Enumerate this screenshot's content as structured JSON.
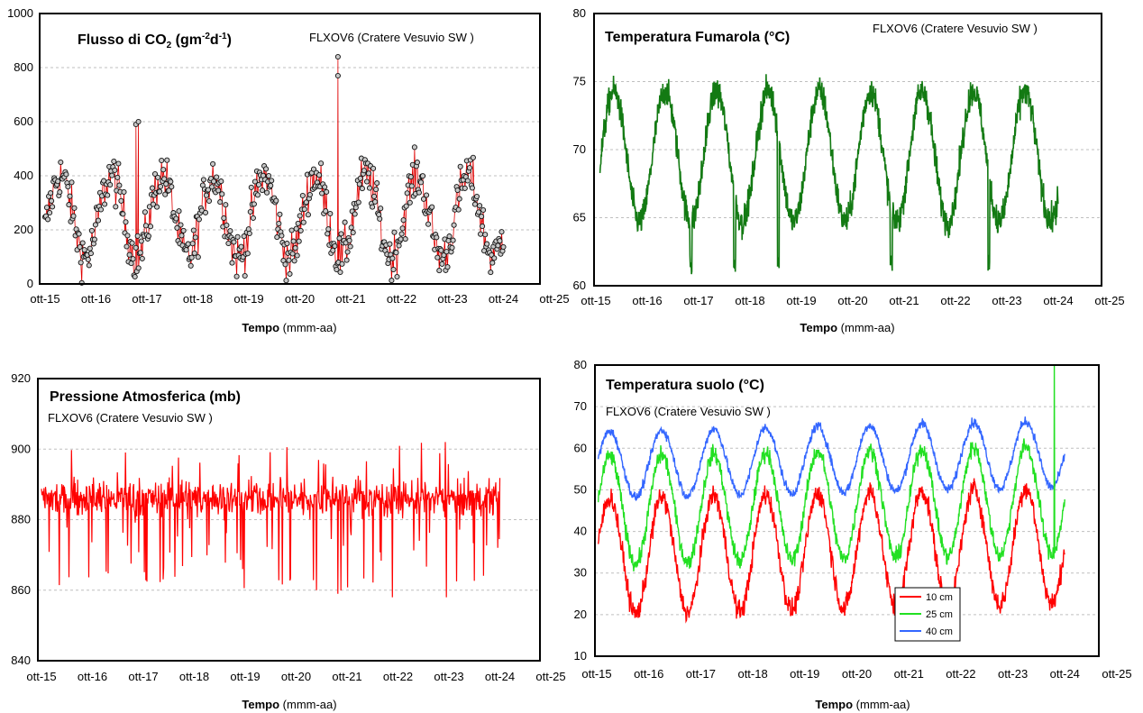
{
  "xlabel": {
    "bold": "Tempo",
    "rest": " (mmm-aa)"
  },
  "x_ticks": [
    "ott-15",
    "ott-16",
    "ott-17",
    "ott-18",
    "ott-19",
    "ott-20",
    "ott-21",
    "ott-22",
    "ott-23",
    "ott-24",
    "ott-25"
  ],
  "colors": {
    "co2_line": "#e00000",
    "co2_marker_fill": "#c8c8c8",
    "fumarole": "#137a13",
    "pressure": "#ff0000",
    "soil_10": "#ff0000",
    "soil_25": "#22e022",
    "soil_40": "#3366ff",
    "frame": "#000000",
    "grid": "#bfbfbf"
  },
  "chart_data": [
    {
      "id": "co2",
      "type": "scatter",
      "title": "Flusso di CO",
      "title_sub": "2",
      "title_unit_pre": " (gm",
      "title_exp1": "-2",
      "title_mid": "d",
      "title_exp2": "-1",
      "title_unit_post": ")",
      "subtitle": "FLXOV6 (Cratere Vesuvio SW )",
      "xlabel": "Tempo (mmm-aa)",
      "ylabel": "",
      "ylim": [
        0,
        1000
      ],
      "y_ticks": [
        "0",
        "200",
        "400",
        "600",
        "800",
        "1000"
      ],
      "x": [
        "ott-15",
        "ott-16",
        "ott-17",
        "ott-18",
        "ott-19",
        "ott-20",
        "ott-21",
        "ott-22",
        "ott-23",
        "ott-24"
      ],
      "series": [
        {
          "values": [
            200,
            380,
            170,
            400,
            280,
            160,
            380,
            160,
            300,
            150
          ]
        }
      ],
      "peaks": [
        {
          "x": "ott-21",
          "y": 840
        },
        {
          "x": "ott-21",
          "y": 770
        },
        {
          "x": "ott-17",
          "y": 600
        },
        {
          "x": "ott-17",
          "y": 590
        }
      ],
      "grid": true
    },
    {
      "id": "fumarole",
      "type": "line",
      "title": "Temperatura Fumarola (°C)",
      "subtitle": "FLXOV6 (Cratere Vesuvio SW )",
      "xlabel": "Tempo (mmm-aa)",
      "ylabel": "",
      "ylim": [
        60,
        80
      ],
      "y_ticks": [
        "60",
        "65",
        "70",
        "75",
        "80"
      ],
      "x": [
        "ott-15",
        "ott-16",
        "ott-17",
        "ott-18",
        "ott-19",
        "ott-20",
        "ott-21",
        "ott-22",
        "ott-23",
        "ott-24"
      ],
      "series": [
        {
          "values": [
            70,
            66,
            65,
            63,
            71,
            63,
            64,
            65,
            61,
            67
          ]
        }
      ],
      "range": [
        60,
        76.5
      ],
      "grid": true
    },
    {
      "id": "pressure",
      "type": "line",
      "title": "Pressione Atmosferica (mb)",
      "subtitle": "FLXOV6 (Cratere Vesuvio SW )",
      "xlabel": "Tempo (mmm-aa)",
      "ylabel": "",
      "ylim": [
        840,
        920
      ],
      "y_ticks": [
        "840",
        "860",
        "880",
        "900",
        "920"
      ],
      "x": [
        "ott-15",
        "ott-24"
      ],
      "series": [
        {
          "values": [
            886,
            887
          ]
        }
      ],
      "range": [
        858,
        903
      ],
      "grid": true
    },
    {
      "id": "soil",
      "type": "line",
      "title": "Temperatura suolo (°C)",
      "subtitle": "FLXOV6 (Cratere Vesuvio SW )",
      "xlabel": "Tempo (mmm-aa)",
      "ylabel": "",
      "ylim": [
        10,
        80
      ],
      "y_ticks": [
        "10",
        "20",
        "30",
        "40",
        "50",
        "60",
        "70",
        "80"
      ],
      "x": [
        "ott-15",
        "ott-16",
        "ott-17",
        "ott-18",
        "ott-19",
        "ott-20",
        "ott-21",
        "ott-22",
        "ott-23",
        "ott-24"
      ],
      "series": [
        {
          "name": "10 cm",
          "values": [
            30,
            47,
            48,
            48,
            49,
            50,
            50,
            51,
            51,
            45
          ]
        },
        {
          "name": "25 cm",
          "values": [
            40,
            56,
            58,
            58,
            59,
            60,
            61,
            61,
            61,
            55
          ]
        },
        {
          "name": "40 cm",
          "values": [
            52,
            65,
            66,
            66,
            66,
            67,
            67,
            67,
            67,
            60
          ]
        }
      ],
      "legend": "bottom-center",
      "grid": true
    }
  ]
}
